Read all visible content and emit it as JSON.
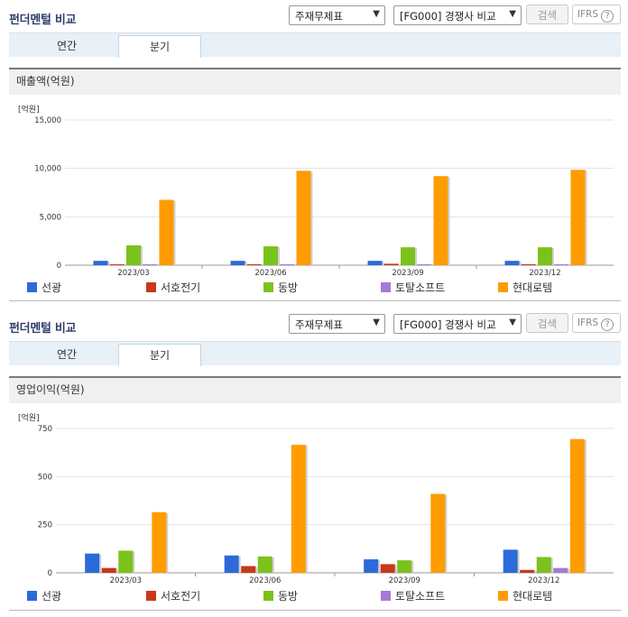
{
  "colors": {
    "선광": "#2c6ad9",
    "서호전기": "#c8381a",
    "동방": "#7cc21c",
    "토탈소프트": "#a57ad6",
    "현대로템": "#ff9c00"
  },
  "panels": [
    {
      "title": "펀더멘털 비교",
      "select1": "주재무제표",
      "select2": "[FG000] 경쟁사 비교",
      "search_label": "검색",
      "ifrs_label": "IFRS",
      "ifrs_q": "?",
      "tabs": [
        "연간",
        "분기"
      ],
      "active_tab": 1,
      "metric_header": "매출액(억원)",
      "unit": "[억원]",
      "legend": [
        "선광",
        "서호전기",
        "동방",
        "토탈소프트",
        "현대로템"
      ]
    },
    {
      "title": "펀더멘털 비교",
      "select1": "주재무제표",
      "select2": "[FG000] 경쟁사 비교",
      "search_label": "검색",
      "ifrs_label": "IFRS",
      "ifrs_q": "?",
      "tabs": [
        "연간",
        "분기"
      ],
      "active_tab": 1,
      "metric_header": "영업이익(억원)",
      "unit": "[억원]",
      "legend": [
        "선광",
        "서호전기",
        "동방",
        "토탈소프트",
        "현대로템"
      ]
    }
  ],
  "chart_data": [
    {
      "type": "bar",
      "categories": [
        "2023/03",
        "2023/06",
        "2023/09",
        "2023/12"
      ],
      "yticks": [
        "0",
        "5,000",
        "10,000",
        "15,000"
      ],
      "ylim": [
        0,
        15000
      ],
      "series": [
        {
          "name": "선광",
          "values": [
            450,
            450,
            450,
            450
          ]
        },
        {
          "name": "서호전기",
          "values": [
            50,
            100,
            150,
            100
          ]
        },
        {
          "name": "동방",
          "values": [
            2050,
            1950,
            1850,
            1850
          ]
        },
        {
          "name": "토탈소프트",
          "values": [
            20,
            20,
            20,
            20
          ]
        },
        {
          "name": "현대로템",
          "values": [
            6750,
            9750,
            9200,
            9850
          ]
        }
      ]
    },
    {
      "type": "bar",
      "categories": [
        "2023/03",
        "2023/06",
        "2023/09",
        "2023/12"
      ],
      "yticks": [
        "0",
        "250",
        "500",
        "750"
      ],
      "ylim": [
        0,
        750
      ],
      "series": [
        {
          "name": "선광",
          "values": [
            100,
            90,
            70,
            120
          ]
        },
        {
          "name": "서호전기",
          "values": [
            25,
            35,
            45,
            15
          ]
        },
        {
          "name": "동방",
          "values": [
            115,
            85,
            65,
            82
          ]
        },
        {
          "name": "토탈소프트",
          "values": [
            0,
            0,
            0,
            25
          ]
        },
        {
          "name": "현대로템",
          "values": [
            315,
            665,
            410,
            695
          ]
        }
      ]
    }
  ]
}
